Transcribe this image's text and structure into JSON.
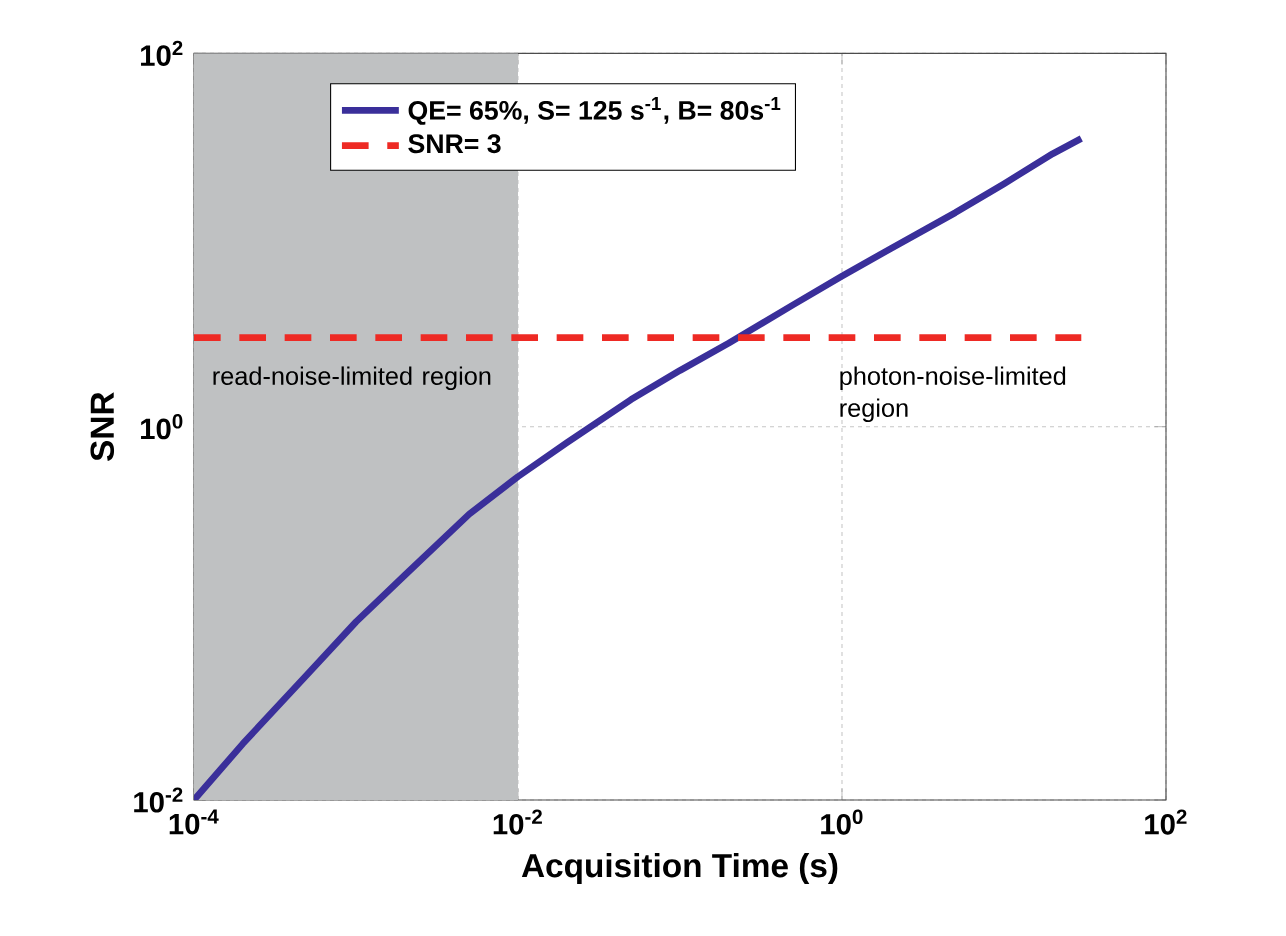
{
  "chart_data": {
    "type": "line",
    "xlabel": "Acquisition Time (s)",
    "ylabel": "SNR",
    "log": "xy",
    "grid": true,
    "legend": "top left",
    "marker": "none",
    "xlim": [
      0.0001,
      100
    ],
    "ylim": [
      0.01,
      100
    ],
    "xticks": [
      {
        "value": 0.0001,
        "label": "10$^{-4}$"
      },
      {
        "value": 0.01,
        "label": "10$^{-2}$"
      },
      {
        "value": 1,
        "label": "10$^{0}$"
      },
      {
        "value": 100,
        "label": "10$^{2}$"
      }
    ],
    "yticks": [
      {
        "value": 0.01,
        "label": "10$^{-2}$"
      },
      {
        "value": 1,
        "label": "10$^{0}$"
      },
      {
        "value": 100,
        "label": "10$^{2}$"
      }
    ],
    "series": [
      {
        "name": "QE= 65%, S= 125 s$^{-1}$, B= 80s$^{-1}$",
        "color": "#3a2f9a",
        "line_style": "solid",
        "x": [
          0.0001,
          0.0002,
          0.0005,
          0.001,
          0.002,
          0.005,
          0.01,
          0.02,
          0.05,
          0.1,
          0.2,
          0.5,
          1,
          2,
          5,
          10,
          20,
          30
        ],
        "values": [
          0.01,
          0.02,
          0.047,
          0.09,
          0.16,
          0.34,
          0.54,
          0.82,
          1.4,
          2.0,
          2.8,
          4.5,
          6.4,
          9.0,
          14,
          20,
          29,
          35
        ]
      },
      {
        "name": "SNR= 3",
        "color": "#ee2a24",
        "line_style": "dashed",
        "x": [
          0.0001,
          30
        ],
        "values": [
          3,
          3
        ]
      }
    ],
    "bands": [
      {
        "axis": "x",
        "from": 0.0001,
        "to": 0.01,
        "color": "#bfc1c2"
      }
    ],
    "annotations": [
      "read-noise-limited region",
      "photon-noise-limited region"
    ]
  }
}
